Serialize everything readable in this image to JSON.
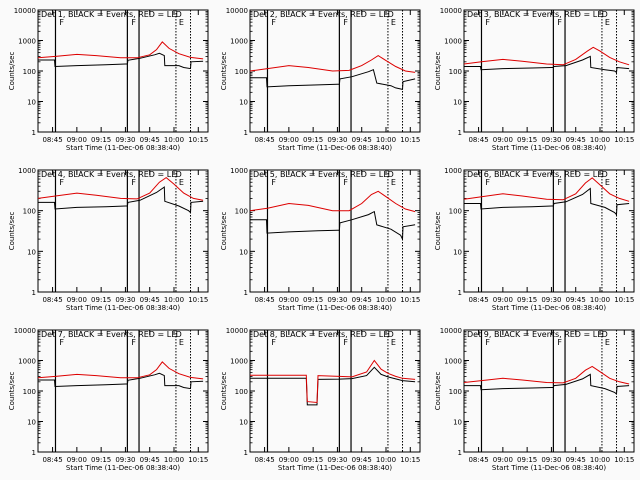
{
  "panel_title_suffix": ", BLACK = Events, RED = LLD",
  "flags": [
    "F",
    "F",
    "E"
  ],
  "chart_data": [
    {
      "type": "line",
      "title": "Det 1",
      "ylabel": "Counts/sec",
      "xlabel": "Start Time (11-Dec-06 08:38:40)",
      "yscale": "log",
      "ylim": [
        1,
        10000
      ],
      "xlim": [
        8.6,
        10.35
      ],
      "ytick_labels": [
        "1",
        "10",
        "100",
        "1000",
        "10000"
      ],
      "xticks": [
        8.75,
        9.0,
        9.25,
        9.5,
        9.75,
        10.0,
        10.25
      ],
      "xtick_labels": [
        "08:45",
        "09:00",
        "09:15",
        "09:30",
        "09:45",
        "10:00",
        "10:15"
      ],
      "vlines_solid": [
        8.78,
        9.52,
        9.64
      ],
      "vlines_dotted": [
        10.02,
        10.17
      ],
      "series": [
        {
          "name": "Events",
          "color": "#000000",
          "x": [
            8.6,
            8.77,
            8.775,
            9.0,
            9.3,
            9.5,
            9.52,
            9.525,
            9.65,
            9.8,
            9.85,
            9.9,
            9.905,
            10.05,
            10.1,
            10.17,
            10.175,
            10.3
          ],
          "y": [
            230,
            230,
            140,
            150,
            160,
            170,
            170,
            225,
            260,
            340,
            380,
            320,
            150,
            150,
            130,
            120,
            200,
            210
          ]
        },
        {
          "name": "LLD",
          "color": "#dd0000",
          "x": [
            8.6,
            8.78,
            9.0,
            9.2,
            9.45,
            9.62,
            9.75,
            9.82,
            9.88,
            9.95,
            10.05,
            10.17,
            10.3
          ],
          "y": [
            270,
            300,
            350,
            320,
            270,
            270,
            340,
            500,
            900,
            550,
            370,
            280,
            250
          ]
        }
      ]
    },
    {
      "type": "line",
      "title": "Det 2",
      "ylabel": "Counts/sec",
      "xlabel": "Start Time (11-Dec-06 08:38:40)",
      "yscale": "log",
      "ylim": [
        1,
        10000
      ],
      "xlim": [
        8.6,
        10.35
      ],
      "ytick_labels": [
        "1",
        "10",
        "100",
        "1000",
        "10000"
      ],
      "xticks": [
        8.75,
        9.0,
        9.25,
        9.5,
        9.75,
        10.0,
        10.25
      ],
      "xtick_labels": [
        "08:45",
        "09:00",
        "09:15",
        "09:30",
        "09:45",
        "10:00",
        "10:15"
      ],
      "vlines_solid": [
        8.78,
        9.52,
        9.64
      ],
      "vlines_dotted": [
        10.02,
        10.17
      ],
      "series": [
        {
          "name": "Events",
          "color": "#000000",
          "x": [
            8.6,
            8.77,
            8.775,
            9.0,
            9.3,
            9.5,
            9.52,
            9.525,
            9.65,
            9.82,
            9.87,
            9.905,
            10.05,
            10.1,
            10.17,
            10.175,
            10.3
          ],
          "y": [
            60,
            60,
            30,
            33,
            35,
            37,
            37,
            55,
            65,
            95,
            110,
            40,
            33,
            28,
            25,
            45,
            55
          ]
        },
        {
          "name": "LLD",
          "color": "#dd0000",
          "x": [
            8.6,
            8.78,
            9.0,
            9.2,
            9.45,
            9.62,
            9.75,
            9.85,
            9.92,
            10.0,
            10.1,
            10.2,
            10.3
          ],
          "y": [
            100,
            120,
            150,
            130,
            100,
            105,
            150,
            230,
            320,
            220,
            140,
            100,
            90
          ]
        }
      ]
    },
    {
      "type": "line",
      "title": "Det 3",
      "ylabel": "Counts/sec",
      "xlabel": "Start Time (11-Dec-06 08:38:40)",
      "yscale": "log",
      "ylim": [
        1,
        10000
      ],
      "xlim": [
        8.6,
        10.35
      ],
      "ytick_labels": [
        "1",
        "10",
        "100",
        "1000",
        "10000"
      ],
      "xticks": [
        8.75,
        9.0,
        9.25,
        9.5,
        9.75,
        10.0,
        10.25
      ],
      "xtick_labels": [
        "08:45",
        "09:00",
        "09:15",
        "09:30",
        "09:45",
        "10:00",
        "10:15"
      ],
      "vlines_solid": [
        8.78,
        9.52,
        9.64
      ],
      "vlines_dotted": [
        10.02,
        10.17
      ],
      "series": [
        {
          "name": "Events",
          "color": "#000000",
          "x": [
            8.6,
            8.77,
            8.775,
            9.0,
            9.3,
            9.5,
            9.52,
            9.525,
            9.65,
            9.82,
            9.9,
            9.905,
            10.05,
            10.15,
            10.17,
            10.175,
            10.3
          ],
          "y": [
            140,
            140,
            110,
            120,
            125,
            130,
            130,
            140,
            150,
            230,
            300,
            130,
            110,
            100,
            90,
            130,
            120
          ]
        },
        {
          "name": "LLD",
          "color": "#dd0000",
          "x": [
            8.6,
            8.78,
            9.0,
            9.2,
            9.45,
            9.62,
            9.75,
            9.87,
            9.93,
            10.0,
            10.1,
            10.2,
            10.3
          ],
          "y": [
            170,
            200,
            240,
            210,
            170,
            160,
            240,
            450,
            600,
            450,
            280,
            200,
            160
          ]
        }
      ]
    },
    {
      "type": "line",
      "title": "Det 4",
      "ylabel": "Counts/sec",
      "xlabel": "Start Time (11-Dec-06 08:38:40)",
      "yscale": "log",
      "ylim": [
        1,
        1000
      ],
      "xlim": [
        8.6,
        10.35
      ],
      "ytick_labels": [
        "1",
        "10",
        "100",
        "1000"
      ],
      "xticks": [
        8.75,
        9.0,
        9.25,
        9.5,
        9.75,
        10.0,
        10.25
      ],
      "xtick_labels": [
        "08:45",
        "09:00",
        "09:15",
        "09:30",
        "09:45",
        "10:00",
        "10:15"
      ],
      "vlines_solid": [
        8.78,
        9.52,
        9.64
      ],
      "vlines_dotted": [
        10.02,
        10.17
      ],
      "series": [
        {
          "name": "Events",
          "color": "#000000",
          "x": [
            8.6,
            8.77,
            8.775,
            9.0,
            9.3,
            9.5,
            9.52,
            9.525,
            9.65,
            9.82,
            9.9,
            9.905,
            10.05,
            10.15,
            10.17,
            10.175,
            10.3
          ],
          "y": [
            160,
            160,
            110,
            120,
            125,
            130,
            130,
            160,
            180,
            280,
            380,
            170,
            130,
            100,
            90,
            160,
            170
          ]
        },
        {
          "name": "LLD",
          "color": "#dd0000",
          "x": [
            8.6,
            8.78,
            9.0,
            9.2,
            9.45,
            9.62,
            9.75,
            9.85,
            9.92,
            10.0,
            10.1,
            10.2,
            10.3
          ],
          "y": [
            200,
            230,
            270,
            240,
            200,
            195,
            270,
            500,
            650,
            450,
            270,
            200,
            180
          ]
        }
      ]
    },
    {
      "type": "line",
      "title": "Det 5",
      "ylabel": "Counts/sec",
      "xlabel": "Start Time (11-Dec-06 08:38:40)",
      "yscale": "log",
      "ylim": [
        1,
        1000
      ],
      "xlim": [
        8.6,
        10.35
      ],
      "ytick_labels": [
        "1",
        "10",
        "100",
        "1000"
      ],
      "xticks": [
        8.75,
        9.0,
        9.25,
        9.5,
        9.75,
        10.0,
        10.25
      ],
      "xtick_labels": [
        "08:45",
        "09:00",
        "09:15",
        "09:30",
        "09:45",
        "10:00",
        "10:15"
      ],
      "vlines_solid": [
        8.78,
        9.52,
        9.64
      ],
      "vlines_dotted": [
        10.02,
        10.17
      ],
      "series": [
        {
          "name": "Events",
          "color": "#000000",
          "x": [
            8.6,
            8.77,
            8.775,
            9.0,
            9.3,
            9.5,
            9.52,
            9.525,
            9.65,
            9.82,
            9.88,
            9.905,
            10.05,
            10.15,
            10.17,
            10.175,
            10.3
          ],
          "y": [
            60,
            60,
            28,
            30,
            32,
            33,
            33,
            50,
            60,
            80,
            95,
            45,
            35,
            25,
            20,
            40,
            45
          ]
        },
        {
          "name": "LLD",
          "color": "#dd0000",
          "x": [
            8.6,
            8.78,
            9.0,
            9.2,
            9.45,
            9.62,
            9.75,
            9.85,
            9.92,
            10.0,
            10.1,
            10.2,
            10.3
          ],
          "y": [
            100,
            115,
            150,
            135,
            100,
            100,
            150,
            250,
            300,
            220,
            150,
            110,
            95
          ]
        }
      ]
    },
    {
      "type": "line",
      "title": "Det 6",
      "ylabel": "Counts/sec",
      "xlabel": "Start Time (11-Dec-06 08:38:40)",
      "yscale": "log",
      "ylim": [
        1,
        1000
      ],
      "xlim": [
        8.6,
        10.35
      ],
      "ytick_labels": [
        "1",
        "10",
        "100",
        "1000"
      ],
      "xticks": [
        8.75,
        9.0,
        9.25,
        9.5,
        9.75,
        10.0,
        10.25
      ],
      "xtick_labels": [
        "08:45",
        "09:00",
        "09:15",
        "09:30",
        "09:45",
        "10:00",
        "10:15"
      ],
      "vlines_solid": [
        8.78,
        9.52,
        9.64
      ],
      "vlines_dotted": [
        10.02,
        10.17
      ],
      "series": [
        {
          "name": "Events",
          "color": "#000000",
          "x": [
            8.6,
            8.77,
            8.775,
            9.0,
            9.3,
            9.5,
            9.52,
            9.525,
            9.65,
            9.82,
            9.9,
            9.905,
            10.05,
            10.15,
            10.17,
            10.175,
            10.3
          ],
          "y": [
            150,
            150,
            110,
            120,
            125,
            130,
            130,
            150,
            165,
            250,
            350,
            150,
            120,
            90,
            80,
            140,
            150
          ]
        },
        {
          "name": "LLD",
          "color": "#dd0000",
          "x": [
            8.6,
            8.78,
            9.0,
            9.2,
            9.45,
            9.62,
            9.75,
            9.85,
            9.92,
            10.0,
            10.1,
            10.2,
            10.3
          ],
          "y": [
            190,
            220,
            260,
            230,
            190,
            185,
            260,
            480,
            640,
            430,
            260,
            200,
            170
          ]
        }
      ]
    },
    {
      "type": "line",
      "title": "Det 7",
      "ylabel": "Counts/sec",
      "xlabel": "Start Time (11-Dec-06 08:38:40)",
      "yscale": "log",
      "ylim": [
        1,
        10000
      ],
      "xlim": [
        8.6,
        10.35
      ],
      "ytick_labels": [
        "1",
        "10",
        "100",
        "1000",
        "10000"
      ],
      "xticks": [
        8.75,
        9.0,
        9.25,
        9.5,
        9.75,
        10.0,
        10.25
      ],
      "xtick_labels": [
        "08:45",
        "09:00",
        "09:15",
        "09:30",
        "09:45",
        "10:00",
        "10:15"
      ],
      "vlines_solid": [
        8.78,
        9.52,
        9.64
      ],
      "vlines_dotted": [
        10.02,
        10.17
      ],
      "series": [
        {
          "name": "Events",
          "color": "#000000",
          "x": [
            8.6,
            8.77,
            8.775,
            9.0,
            9.3,
            9.5,
            9.52,
            9.525,
            9.65,
            9.8,
            9.85,
            9.9,
            9.905,
            10.05,
            10.1,
            10.17,
            10.175,
            10.3
          ],
          "y": [
            230,
            230,
            140,
            150,
            160,
            170,
            170,
            225,
            260,
            340,
            380,
            320,
            150,
            150,
            130,
            120,
            200,
            210
          ]
        },
        {
          "name": "LLD",
          "color": "#dd0000",
          "x": [
            8.6,
            8.78,
            9.0,
            9.2,
            9.45,
            9.62,
            9.75,
            9.82,
            9.88,
            9.95,
            10.05,
            10.17,
            10.3
          ],
          "y": [
            270,
            300,
            350,
            320,
            270,
            270,
            340,
            500,
            900,
            550,
            370,
            280,
            250
          ]
        }
      ]
    },
    {
      "type": "line",
      "title": "Det 8",
      "ylabel": "Counts/sec",
      "xlabel": "Start Time (11-Dec-06 08:38:40)",
      "yscale": "log",
      "ylim": [
        1,
        10000
      ],
      "xlim": [
        8.6,
        10.35
      ],
      "ytick_labels": [
        "1",
        "10",
        "100",
        "1000",
        "10000"
      ],
      "xticks": [
        8.75,
        9.0,
        9.25,
        9.5,
        9.75,
        10.0,
        10.25
      ],
      "xtick_labels": [
        "08:45",
        "09:00",
        "09:15",
        "09:30",
        "09:45",
        "10:00",
        "10:15"
      ],
      "vlines_solid": [
        8.78,
        9.52,
        9.64
      ],
      "vlines_dotted": [
        10.02,
        10.17
      ],
      "series": [
        {
          "name": "Events",
          "color": "#000000",
          "x": [
            8.6,
            9.18,
            9.19,
            9.29,
            9.3,
            9.52,
            9.65,
            9.8,
            9.88,
            9.95,
            10.02,
            10.1,
            10.17,
            10.3
          ],
          "y": [
            260,
            260,
            35,
            35,
            240,
            245,
            255,
            320,
            600,
            350,
            290,
            250,
            220,
            200
          ]
        },
        {
          "name": "LLD",
          "color": "#dd0000",
          "x": [
            8.6,
            9.18,
            9.19,
            9.29,
            9.3,
            9.52,
            9.65,
            9.8,
            9.88,
            9.95,
            10.02,
            10.1,
            10.17,
            10.3
          ],
          "y": [
            330,
            330,
            45,
            42,
            320,
            300,
            290,
            420,
            1000,
            520,
            380,
            300,
            260,
            240
          ]
        }
      ]
    },
    {
      "type": "line",
      "title": "Det 9",
      "ylabel": "Counts/sec",
      "xlabel": "Start Time (11-Dec-06 08:38:40)",
      "yscale": "log",
      "ylim": [
        1,
        10000
      ],
      "xlim": [
        8.6,
        10.35
      ],
      "ytick_labels": [
        "1",
        "10",
        "100",
        "1000",
        "10000"
      ],
      "xticks": [
        8.75,
        9.0,
        9.25,
        9.5,
        9.75,
        10.0,
        10.25
      ],
      "xtick_labels": [
        "08:45",
        "09:00",
        "09:15",
        "09:30",
        "09:45",
        "10:00",
        "10:15"
      ],
      "vlines_solid": [
        8.78,
        9.52,
        9.64
      ],
      "vlines_dotted": [
        10.02,
        10.17
      ],
      "series": [
        {
          "name": "Events",
          "color": "#000000",
          "x": [
            8.6,
            8.77,
            8.775,
            9.0,
            9.3,
            9.5,
            9.52,
            9.525,
            9.65,
            9.82,
            9.9,
            9.905,
            10.05,
            10.15,
            10.17,
            10.175,
            10.3
          ],
          "y": [
            150,
            150,
            110,
            120,
            125,
            130,
            130,
            150,
            165,
            250,
            350,
            150,
            120,
            90,
            80,
            140,
            150
          ]
        },
        {
          "name": "LLD",
          "color": "#dd0000",
          "x": [
            8.6,
            8.78,
            9.0,
            9.2,
            9.45,
            9.62,
            9.75,
            9.85,
            9.92,
            10.0,
            10.1,
            10.2,
            10.3
          ],
          "y": [
            190,
            220,
            260,
            230,
            190,
            185,
            260,
            480,
            640,
            430,
            260,
            200,
            170
          ]
        }
      ]
    }
  ]
}
